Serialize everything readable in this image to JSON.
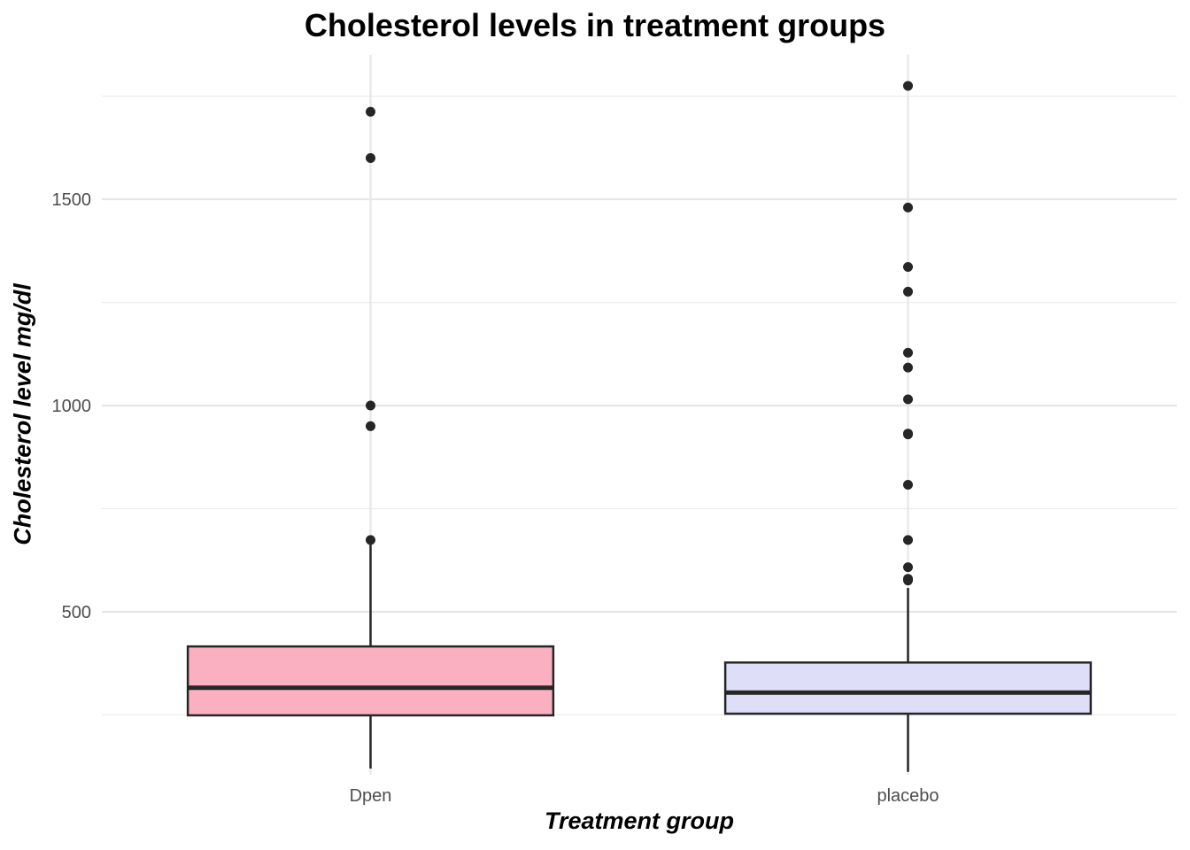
{
  "chart_data": {
    "type": "boxplot",
    "title": "Cholesterol levels in treatment groups",
    "xlabel": "Treatment group",
    "ylabel": "Cholesterol level mg/dl",
    "categories": [
      "Dpen",
      "placebo"
    ],
    "ylim": [
      105,
      1850
    ],
    "yticks": [
      500,
      1000,
      1500
    ],
    "grid": true,
    "boxes": [
      {
        "name": "Dpen",
        "color": "#FBB0C2",
        "whisker_low": 120,
        "q1": 249,
        "median": 316,
        "q3": 416,
        "whisker_high": 668,
        "outliers": [
          674,
          950,
          1000,
          1600,
          1712
        ]
      },
      {
        "name": "placebo",
        "color": "#DEDEF8",
        "whisker_low": 112,
        "q1": 253,
        "median": 304,
        "q3": 377,
        "whisker_high": 558,
        "outliers": [
          576,
          580,
          608,
          674,
          808,
          930,
          932,
          1015,
          1092,
          1128,
          1276,
          1336,
          1480,
          1775
        ]
      }
    ]
  }
}
